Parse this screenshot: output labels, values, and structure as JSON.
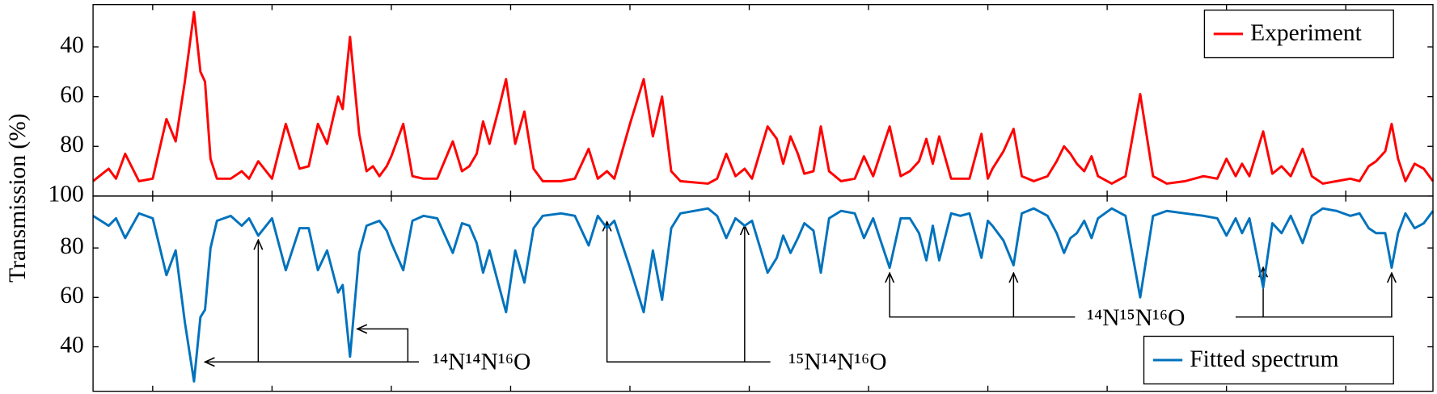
{
  "chart_data": [
    {
      "type": "line",
      "ylabel": "Transmission (%)",
      "legend": "upper right",
      "x": [
        0,
        17,
        25,
        35,
        50,
        65,
        80,
        90,
        100,
        110,
        117,
        122,
        128,
        135,
        150,
        162,
        170,
        180,
        195,
        210,
        225,
        235,
        245,
        255,
        267,
        272,
        280,
        290,
        298,
        305,
        312,
        320,
        325,
        338,
        348,
        360,
        375,
        392,
        402,
        410,
        418,
        425,
        432,
        442,
        450,
        460,
        470,
        480,
        490,
        510,
        525,
        540,
        550,
        560,
        568,
        585,
        600,
        610,
        620,
        630,
        640,
        670,
        680,
        690,
        700,
        710,
        718,
        735,
        745,
        752,
        760,
        768,
        775,
        785,
        793,
        802,
        815,
        830,
        840,
        850,
        868,
        880,
        890,
        900,
        908,
        915,
        922,
        935,
        945,
        955,
        968,
        975,
        980,
        992,
        1003,
        1012,
        1025,
        1040,
        1050,
        1058,
        1065,
        1072,
        1080,
        1088,
        1095,
        1110,
        1125,
        1141,
        1155,
        1170,
        1190,
        1210,
        1225,
        1235,
        1245,
        1252,
        1260,
        1275,
        1285,
        1295,
        1305,
        1318,
        1328,
        1340,
        1355,
        1370,
        1380,
        1390,
        1398,
        1408,
        1415,
        1422,
        1430,
        1440,
        1450,
        1460
      ],
      "series": [
        {
          "name": "Experiment",
          "color": "#ff0000",
          "values": [
            94,
            89,
            93,
            83,
            94,
            93,
            69,
            78,
            54,
            26,
            50,
            54,
            85,
            93,
            93,
            90,
            93,
            86,
            93,
            71,
            89,
            88,
            71,
            79,
            60,
            65,
            36,
            75,
            90,
            88,
            92,
            88,
            84,
            71,
            92,
            93,
            93,
            78,
            90,
            88,
            83,
            70,
            79,
            65,
            53,
            79,
            66,
            89,
            94,
            94,
            93,
            81,
            93,
            90,
            93,
            71,
            53,
            76,
            60,
            90,
            94,
            95,
            93,
            83,
            92,
            89,
            93,
            72,
            77,
            87,
            76,
            83,
            91,
            90,
            72,
            90,
            94,
            93,
            84,
            92,
            72,
            92,
            90,
            86,
            77,
            87,
            76,
            93,
            93,
            93,
            75,
            93,
            89,
            82,
            73,
            92,
            94,
            92,
            86,
            80,
            83,
            87,
            90,
            84,
            92,
            95,
            92,
            59,
            92,
            95,
            94,
            92,
            93,
            85,
            92,
            87,
            92,
            74,
            91,
            88,
            92,
            81,
            92,
            95,
            94,
            93,
            94,
            88,
            86,
            82,
            71,
            85,
            94,
            87,
            89,
            94
          ]
        }
      ],
      "xlim": [
        0,
        1460
      ],
      "xticks": [
        65,
        195,
        325,
        455,
        585,
        715,
        845,
        975,
        1105,
        1235,
        1365
      ],
      "ylim": [
        100,
        23
      ],
      "yticks": [
        40,
        60,
        80,
        100
      ]
    },
    {
      "type": "line",
      "legend": "lower right",
      "x": [
        0,
        17,
        25,
        35,
        50,
        65,
        80,
        90,
        100,
        110,
        117,
        122,
        128,
        135,
        150,
        162,
        170,
        180,
        195,
        210,
        225,
        235,
        245,
        255,
        267,
        272,
        280,
        290,
        298,
        305,
        312,
        320,
        325,
        338,
        348,
        360,
        375,
        392,
        402,
        410,
        418,
        425,
        432,
        442,
        450,
        460,
        470,
        480,
        490,
        510,
        525,
        540,
        550,
        560,
        568,
        585,
        600,
        610,
        620,
        630,
        640,
        670,
        680,
        690,
        700,
        710,
        718,
        735,
        745,
        752,
        760,
        768,
        775,
        785,
        793,
        802,
        815,
        830,
        840,
        850,
        868,
        880,
        890,
        900,
        908,
        915,
        922,
        935,
        945,
        955,
        968,
        975,
        980,
        992,
        1003,
        1012,
        1025,
        1040,
        1050,
        1058,
        1065,
        1072,
        1080,
        1088,
        1095,
        1110,
        1125,
        1141,
        1155,
        1170,
        1190,
        1210,
        1225,
        1235,
        1245,
        1252,
        1260,
        1275,
        1285,
        1295,
        1305,
        1318,
        1328,
        1340,
        1355,
        1370,
        1380,
        1390,
        1398,
        1408,
        1415,
        1422,
        1430,
        1440,
        1450,
        1460
      ],
      "series": [
        {
          "name": "Fitted spectrum",
          "color": "#0072bd",
          "values": [
            93,
            89,
            92,
            84,
            94,
            92,
            69,
            79,
            50,
            26,
            52,
            55,
            80,
            91,
            93,
            89,
            92,
            85,
            92,
            71,
            88,
            88,
            71,
            79,
            62,
            65,
            36,
            78,
            89,
            90,
            91,
            87,
            82,
            71,
            91,
            93,
            92,
            78,
            90,
            89,
            82,
            70,
            79,
            65,
            54,
            79,
            66,
            88,
            93,
            94,
            93,
            81,
            93,
            88,
            91,
            72,
            54,
            79,
            59,
            88,
            94,
            96,
            93,
            84,
            92,
            89,
            91,
            70,
            76,
            85,
            78,
            84,
            90,
            87,
            70,
            92,
            95,
            94,
            84,
            92,
            72,
            92,
            92,
            86,
            75,
            89,
            75,
            94,
            93,
            94,
            76,
            91,
            89,
            83,
            73,
            94,
            96,
            93,
            86,
            78,
            84,
            86,
            91,
            84,
            92,
            96,
            93,
            60,
            93,
            95,
            94,
            93,
            92,
            85,
            92,
            86,
            92,
            64,
            90,
            86,
            93,
            82,
            93,
            96,
            95,
            93,
            94,
            88,
            86,
            86,
            72,
            86,
            94,
            88,
            90,
            95
          ]
        }
      ],
      "xlim": [
        0,
        1460
      ],
      "xticks": [
        65,
        195,
        325,
        455,
        585,
        715,
        845,
        975,
        1105,
        1235,
        1365
      ],
      "ylim": [
        22,
        101
      ],
      "yticks": [
        40,
        60,
        80
      ],
      "annotations": [
        "¹⁴N¹⁴N¹⁶O",
        "¹⁵N¹⁴N¹⁶O",
        "¹⁴N¹⁵N¹⁶O"
      ]
    }
  ]
}
